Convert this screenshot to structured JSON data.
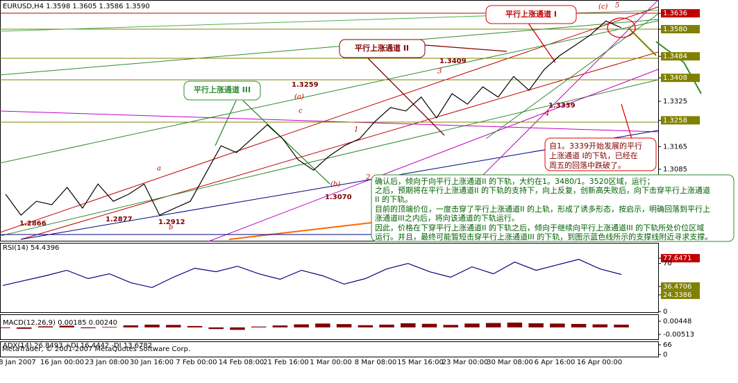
{
  "header": "EURUSD,H4  1.3598 1.3605 1.3586 1.3590",
  "chart_data": [
    {
      "type": "line",
      "color": "#000000",
      "values": [
        1.2997,
        1.2923,
        1.2972,
        1.296,
        1.3021,
        1.2948,
        1.3033,
        1.2972,
        1.2997,
        1.3033,
        1.2923,
        1.2948,
        1.2972,
        1.307,
        1.3168,
        1.3144,
        1.3193,
        1.3242,
        1.3193,
        1.3119,
        1.3082,
        1.3131,
        1.3168,
        1.3193,
        1.3254,
        1.3303,
        1.3291,
        1.334,
        1.3266,
        1.3352,
        1.3315,
        1.3376,
        1.334,
        1.3413,
        1.3364,
        1.3438,
        1.3487,
        1.3523,
        1.356,
        1.3609,
        1.3585
      ],
      "ylim": [
        1.283,
        1.3683
      ],
      "yticks": [
        1.3636,
        {
          "value": 1.358,
          "label": "1.3580"
        },
        1.3484,
        1.3408,
        1.3325,
        1.3258,
        1.3165,
        1.3085
      ],
      "ytick_colors": [
        "#c00000",
        "#808000",
        "#808000",
        "#808000",
        null,
        "#808000",
        null,
        null
      ],
      "x_labels": [
        "8 Jan 2007",
        "16 Jan 00:00",
        "23 Jan 08:00",
        "30 Jan 16:00",
        "7 Feb 00:00",
        "14 Feb 08:00",
        "21 Feb 16:00",
        "1 Mar 00:00",
        "8 Mar 08:00",
        "15 Mar 16:00",
        "23 Mar 00:00",
        "30 Mar 08:00",
        "6 Apr 16:00",
        "16 Apr 00:00"
      ]
    },
    {
      "type": "line",
      "title": "RSI(14) 54.4396",
      "color": "#000080",
      "values": [
        38,
        45,
        52,
        60,
        48,
        55,
        42,
        35,
        50,
        63,
        58,
        66,
        55,
        47,
        60,
        52,
        40,
        48,
        62,
        70,
        58,
        50,
        65,
        55,
        72,
        60,
        68,
        76,
        62,
        54
      ],
      "ylim": [
        0,
        100
      ],
      "yticks": [
        77.6471,
        70,
        36.4706,
        24.3386,
        0
      ],
      "ytick_colors": [
        "#c00000",
        null,
        "#808000",
        "#808000",
        null
      ]
    },
    {
      "type": "bar",
      "title": "MACD(12,26,9) 0.00185 0.00240",
      "color": "#800000",
      "values": [
        -0.0005,
        -0.001,
        0.0008,
        0.0012,
        -0.0006,
        0.0004,
        0.0015,
        0.002,
        0.0018,
        0.001,
        -0.0012,
        -0.0018,
        0.0006,
        0.0014,
        0.0022,
        0.0028,
        0.0024,
        0.0016,
        0.002,
        0.003,
        0.0026,
        0.0018,
        0.0028,
        0.0032,
        0.0035,
        0.003,
        0.0028,
        0.0025,
        0.0022,
        0.002
      ],
      "ylim": [
        -0.00513,
        0.00448
      ],
      "yticks": [
        0.00448,
        -0.00513
      ]
    },
    {
      "type": "none",
      "title": "ADX(14) 26.8493 +DI 16.4442 -DI 13.6782",
      "ylim": [
        0,
        66
      ],
      "yticks": [
        66,
        0
      ]
    }
  ],
  "copyright": "MetaTrader, © 2001-2007 MetaQuotes Software Corp.",
  "annotations": {
    "channel_1": "平行上涨通道 I",
    "channel_2": "平行上涨通道 II",
    "channel_3": "平行上涨通道 III",
    "prices": [
      "1.3409",
      "1.3259",
      "1.3339",
      "1.3070",
      "1.2866",
      "1.2877",
      "1.2912"
    ],
    "waves": [
      "(c)",
      "5",
      "3",
      "(a)",
      "c",
      "1",
      "4",
      "(b)",
      "2",
      "a",
      "b"
    ],
    "note_red": [
      "自1。3339开始发展的平行",
      "上涨通道 I的下轨，已经在",
      "周五的回落中跌破了。"
    ],
    "note_green": [
      "确认后，倾向于向平行上涨通道II 的下轨，大约在1。3480/1。3520区域，运行；",
      "之后，预期将在平行上涨通道II 的下轨的支持下，向上反复，创新高失败后，向下击穿平行上涨通道",
      "II 的下轨。",
      "目前的顶端价位，一度击穿了平行上涨通道II 的上轨，形成了诱多形态，按启示，明确回落到平行上",
      "涨通道III之内后，将向该通道的下轨运行。",
      "因此，价格在下穿平行上涨通道II 的下轨之后，倾向于继续向平行上涨通道III 的下轨所处价位区域",
      "运行。并且，最终可能暂短击穿平行上涨通道III 的下轨，到图示蓝色线所示的支撑线附近寻求支撑。"
    ]
  }
}
